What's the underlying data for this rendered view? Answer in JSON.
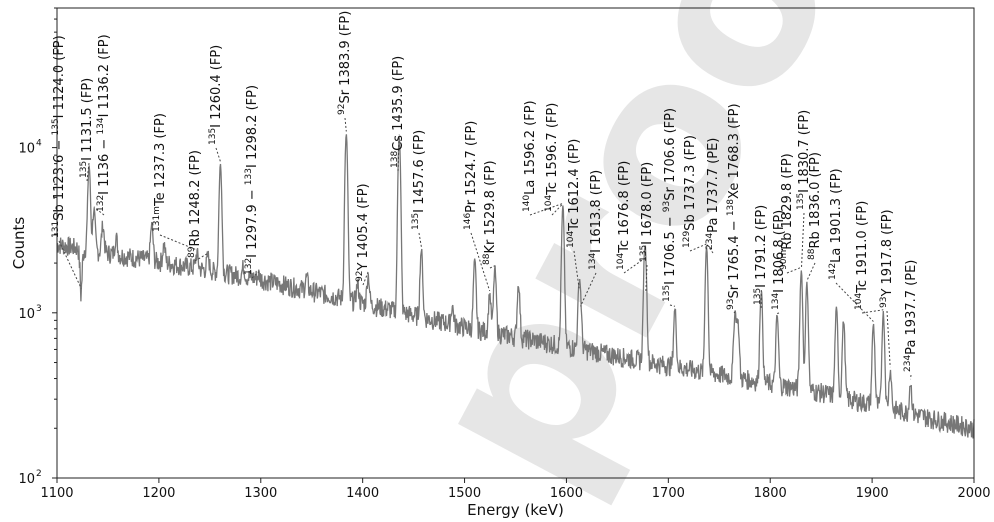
{
  "chart_data": {
    "type": "line",
    "xlabel": "Energy (keV)",
    "ylabel": "Counts",
    "xlim": [
      1100,
      2000
    ],
    "ylim": [
      100,
      70000
    ],
    "yscale": "log",
    "grid": false,
    "xticks": [
      {
        "value": 1100,
        "label": "1100"
      },
      {
        "value": 1200,
        "label": "1200"
      },
      {
        "value": 1300,
        "label": "1300"
      },
      {
        "value": 1400,
        "label": "1400"
      },
      {
        "value": 1500,
        "label": "1500"
      },
      {
        "value": 1600,
        "label": "1600"
      },
      {
        "value": 1700,
        "label": "1700"
      },
      {
        "value": 1800,
        "label": "1800"
      },
      {
        "value": 1900,
        "label": "1900"
      },
      {
        "value": 2000,
        "label": "2000"
      }
    ],
    "yticks": [
      {
        "value": 100,
        "base": "10",
        "exp": "2"
      },
      {
        "value": 1000,
        "base": "10",
        "exp": "3"
      },
      {
        "value": 10000,
        "base": "10",
        "exp": "4"
      }
    ],
    "baseline": [
      [
        1100,
        2600
      ],
      [
        1300,
        1600
      ],
      [
        1500,
        820
      ],
      [
        1700,
        480
      ],
      [
        1850,
        330
      ],
      [
        2000,
        200
      ]
    ],
    "peaks": [
      [
        1123.6,
        1350
      ],
      [
        1131.5,
        7800
      ],
      [
        1136.2,
        4200
      ],
      [
        1145,
        3400
      ],
      [
        1158,
        2900
      ],
      [
        1193,
        3400
      ],
      [
        1205,
        2600
      ],
      [
        1237.3,
        2300
      ],
      [
        1248.2,
        2200
      ],
      [
        1260.4,
        7900
      ],
      [
        1283,
        1900
      ],
      [
        1297.9,
        1700
      ],
      [
        1345,
        1650
      ],
      [
        1383.9,
        12000
      ],
      [
        1395,
        1500
      ],
      [
        1405.4,
        1700
      ],
      [
        1435.9,
        11500
      ],
      [
        1457.6,
        2400
      ],
      [
        1488,
        1100
      ],
      [
        1510,
        2050
      ],
      [
        1524.7,
        1300
      ],
      [
        1529.8,
        1850
      ],
      [
        1553,
        1500
      ],
      [
        1596.5,
        4400
      ],
      [
        1612.4,
        1350
      ],
      [
        1613.8,
        1050
      ],
      [
        1676.8,
        2050
      ],
      [
        1678.0,
        1300
      ],
      [
        1706.5,
        1050
      ],
      [
        1737.5,
        2500
      ],
      [
        1765.4,
        1000
      ],
      [
        1768.3,
        880
      ],
      [
        1791.2,
        1350
      ],
      [
        1806.8,
        950
      ],
      [
        1830.5,
        1800
      ],
      [
        1836.0,
        1500
      ],
      [
        1865,
        1050
      ],
      [
        1872,
        900
      ],
      [
        1901.3,
        850
      ],
      [
        1911.0,
        1000
      ],
      [
        1917.8,
        450
      ],
      [
        1937.7,
        380
      ]
    ],
    "annotations": [
      {
        "sup": "131",
        "text": "Sb 1123.6 − ",
        "sup2": "135",
        "text2": "I 1124.0 (FP)",
        "x": 1123.8,
        "peak_counts": 1350
      },
      {
        "sup": "135",
        "text": "I 1131.5 (FP)",
        "x": 1131.5,
        "peak_counts": 7800
      },
      {
        "sup": "132",
        "text": "I 1136 − ",
        "sup2": "134",
        "text2": "I 1136.2 (FP)",
        "x": 1136.1,
        "peak_counts": 4200
      },
      {
        "sup": "131m",
        "text": "Te 1237.3 (FP)",
        "x": 1237.3,
        "peak_counts": 2300
      },
      {
        "sup": "89",
        "text": "Rb 1248.2 (FP)",
        "x": 1248.2,
        "peak_counts": 2200
      },
      {
        "sup": "135",
        "text": "I 1260.4 (FP)",
        "x": 1260.4,
        "peak_counts": 7900
      },
      {
        "sup": "132",
        "text": "I 1297.9 − ",
        "sup2": "133",
        "text2": "I 1298.2 (FP)",
        "x": 1298.0,
        "peak_counts": 1700
      },
      {
        "sup": "92",
        "text": "Sr 1383.9 (FP)",
        "x": 1383.9,
        "peak_counts": 12000
      },
      {
        "sup": "92",
        "text": "Y 1405.4 (FP)",
        "x": 1405.4,
        "peak_counts": 1700
      },
      {
        "sup": "138",
        "text": "Cs 1435.9 (FP)",
        "x": 1435.9,
        "peak_counts": 11500
      },
      {
        "sup": "135",
        "text": "I 1457.6 (FP)",
        "x": 1457.6,
        "peak_counts": 2400
      },
      {
        "sup": "146",
        "text": "Pr 1524.7 (FP)",
        "x": 1524.7,
        "peak_counts": 1300
      },
      {
        "sup": "88",
        "text": "Kr 1529.8 (FP)",
        "x": 1529.8,
        "peak_counts": 1850
      },
      {
        "sup": "140",
        "text": "La 1596.2 (FP)",
        "x": 1596.2,
        "peak_counts": 4400
      },
      {
        "sup": "104",
        "text": "Tc 1596.7 (FP)",
        "x": 1596.7,
        "peak_counts": 4400
      },
      {
        "sup": "104",
        "text": "Tc 1612.4 (FP)",
        "x": 1612.4,
        "peak_counts": 1350
      },
      {
        "sup": "134",
        "text": "I 1613.8 (FP)",
        "x": 1613.8,
        "peak_counts": 1050
      },
      {
        "sup": "104",
        "text": "Tc 1676.8 (FP)",
        "x": 1676.8,
        "peak_counts": 2050
      },
      {
        "sup": "135",
        "text": "I 1678.0 (FP)",
        "x": 1678.0,
        "peak_counts": 1300
      },
      {
        "sup": "135",
        "text": "I 1706.5 − ",
        "sup2": "93",
        "text2": "Sr 1706.6 (FP)",
        "x": 1706.5,
        "peak_counts": 1050
      },
      {
        "sup": "129",
        "text": "Sb 1737.3 (FP)",
        "x": 1737.3,
        "peak_counts": 2500
      },
      {
        "sup": "234",
        "text": "Pa 1737.7 (PE)",
        "x": 1737.7,
        "peak_counts": 2500
      },
      {
        "sup": "93",
        "text": "Sr 1765.4 − ",
        "sup2": "138",
        "text2": "Xe 1768.3 (FP)",
        "x": 1766.8,
        "peak_counts": 1000
      },
      {
        "sup": "135",
        "text": "I 1791.2 (FP)",
        "x": 1791.2,
        "peak_counts": 1350
      },
      {
        "sup": "134",
        "text": "I 1806.8 (FP)",
        "x": 1806.8,
        "peak_counts": 950
      },
      {
        "sup": "90m",
        "text": "Rb 1829.8 (FP)",
        "x": 1829.8,
        "peak_counts": 1800
      },
      {
        "sup": "135",
        "text": "I 1830.7 (FP)",
        "x": 1830.7,
        "peak_counts": 1800
      },
      {
        "sup": "88",
        "text": "Rb 1836.0 (FP)",
        "x": 1836.0,
        "peak_counts": 1500
      },
      {
        "sup": "142",
        "text": "La 1901.3 (FP)",
        "x": 1901.3,
        "peak_counts": 850
      },
      {
        "sup": "104",
        "text": "Tc 1911.0 (FP)",
        "x": 1911.0,
        "peak_counts": 1000
      },
      {
        "sup": "93",
        "text": "Y 1917.8 (FP)",
        "x": 1917.8,
        "peak_counts": 450
      },
      {
        "sup": "234",
        "text": "Pa 1937.7 (PE)",
        "x": 1937.7,
        "peak_counts": 380
      }
    ],
    "watermark": "proof",
    "colors": {
      "spectrum": "#777777",
      "watermark": "#d2d2d2"
    }
  }
}
